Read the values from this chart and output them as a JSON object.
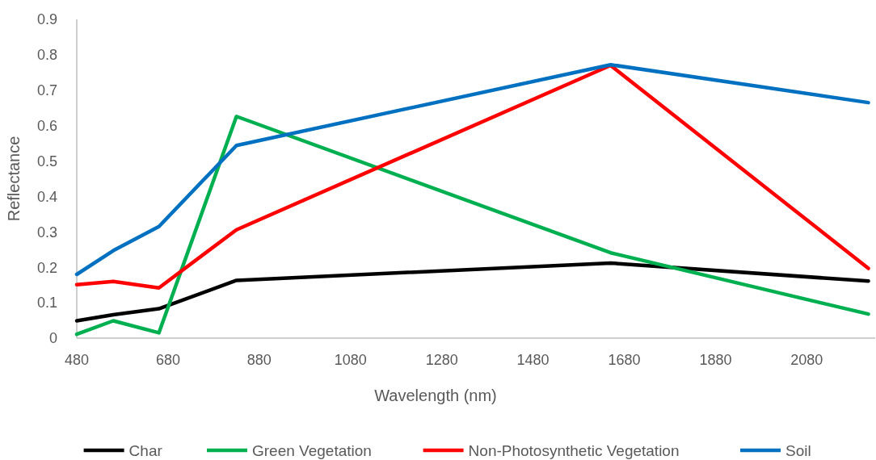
{
  "chart_data": {
    "type": "line",
    "xlabel": "Wavelength (nm)",
    "ylabel": "Reflectance",
    "x": [
      480,
      560,
      660,
      830,
      1650,
      2215
    ],
    "xlim": [
      480,
      2230
    ],
    "xticks": [
      480,
      680,
      880,
      1080,
      1280,
      1480,
      1680,
      1880,
      2080
    ],
    "ylim": [
      0,
      0.9
    ],
    "yticks": [
      0,
      0.1,
      0.2,
      0.3,
      0.4,
      0.5,
      0.6,
      0.7,
      0.8,
      0.9
    ],
    "grid": false,
    "legend": "bottom",
    "marker": "none",
    "line_style": "solid",
    "series": [
      {
        "name": "Char",
        "color": "#000000",
        "values": [
          0.049,
          0.066,
          0.083,
          0.163,
          0.212,
          0.161
        ]
      },
      {
        "name": "Green Vegetation",
        "color": "#00b050",
        "values": [
          0.011,
          0.049,
          0.015,
          0.626,
          0.241,
          0.068
        ]
      },
      {
        "name": "Non-Photosynthetic Vegetation",
        "color": "#ff0000",
        "values": [
          0.151,
          0.16,
          0.142,
          0.306,
          0.77,
          0.197
        ]
      },
      {
        "name": "Soil",
        "color": "#0070c0",
        "values": [
          0.18,
          0.247,
          0.315,
          0.544,
          0.772,
          0.665
        ]
      }
    ]
  }
}
